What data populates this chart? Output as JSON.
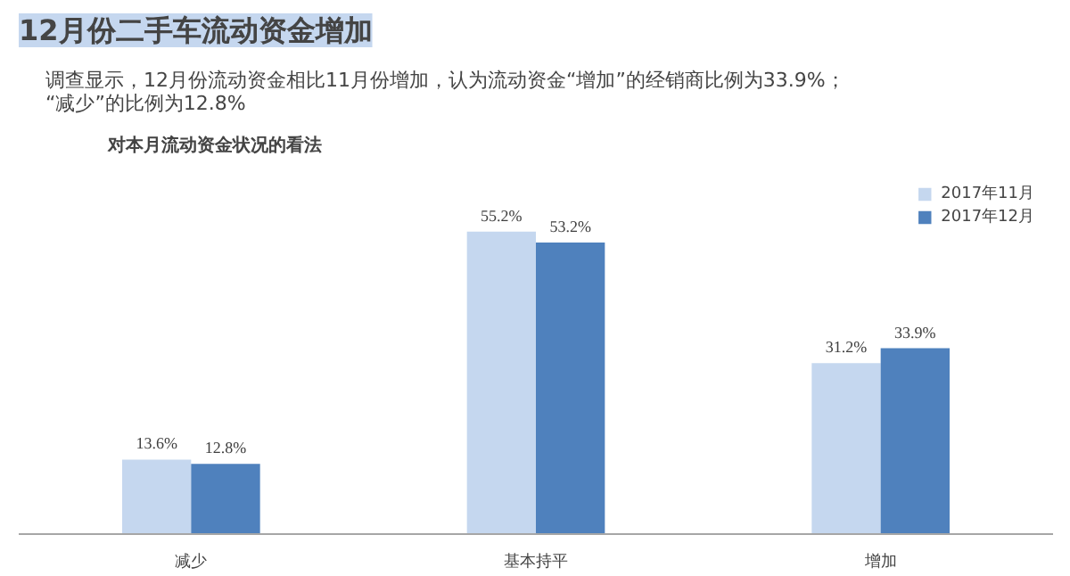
{
  "chart_data": {
    "type": "bar",
    "title": "12月份二手车流动资金增加",
    "subtitle": "调查显示，12月份流动资金相比11月份增加，认为流动资金“增加”的经销商比例为33.9%；\n“减少”的比例为12.8%",
    "annotations": [
      "对本月流动资金状况的看法"
    ],
    "categories": [
      "减少",
      "基本持平",
      "增加"
    ],
    "series": [
      {
        "name": "2017年11月",
        "color": "#c5d7ef",
        "values": [
          13.6,
          55.2,
          31.2
        ],
        "value_labels": [
          "13.6%",
          "55.2%",
          "31.2%"
        ]
      },
      {
        "name": "2017年12月",
        "color": "#4f81bd",
        "values": [
          12.8,
          53.2,
          33.9
        ],
        "value_labels": [
          "12.8%",
          "53.2%",
          "33.9%"
        ]
      }
    ],
    "legend": "top right",
    "grid": false
  }
}
